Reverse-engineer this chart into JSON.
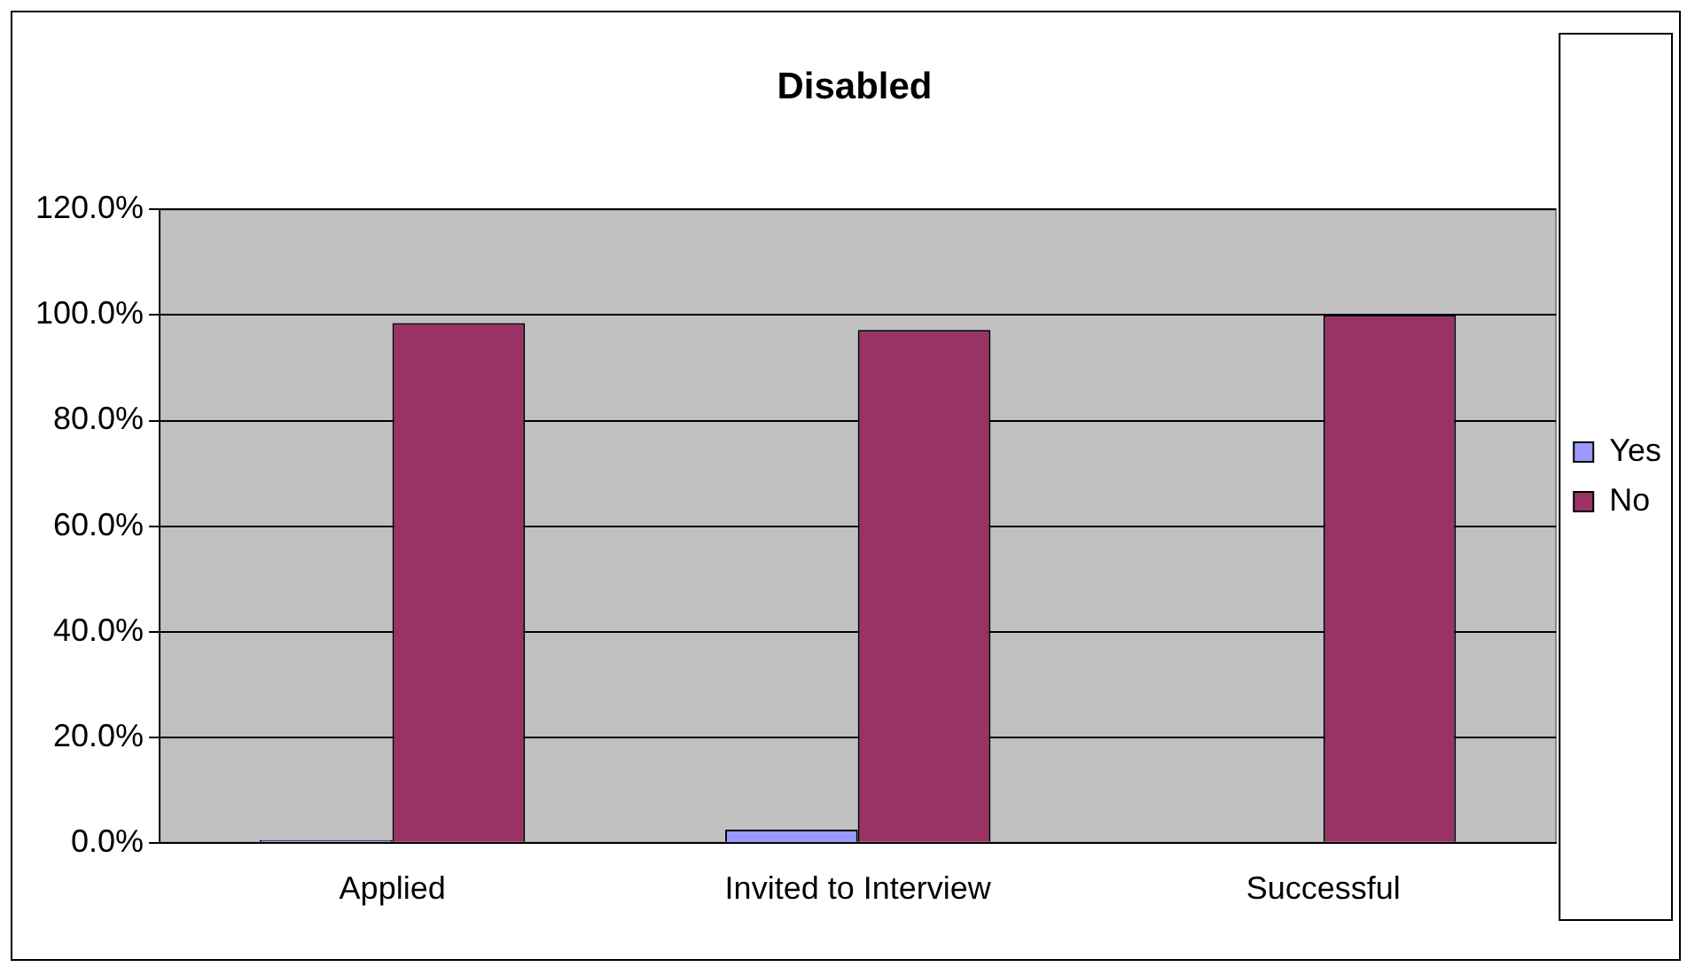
{
  "chart_data": {
    "type": "bar",
    "title": "Disabled",
    "categories": [
      "Applied",
      "Invited to Interview",
      "Successful"
    ],
    "series": [
      {
        "name": "Yes",
        "color": "#9999ff",
        "values": [
          0.5,
          2.5,
          0
        ]
      },
      {
        "name": "No",
        "color": "#993366",
        "values": [
          98.5,
          97.2,
          100
        ]
      }
    ],
    "ylim": [
      0,
      120
    ],
    "yticks": [
      {
        "value": 0,
        "label": "0.0%"
      },
      {
        "value": 20,
        "label": "20.0%"
      },
      {
        "value": 40,
        "label": "40.0%"
      },
      {
        "value": 60,
        "label": "60.0%"
      },
      {
        "value": 80,
        "label": "80.0%"
      },
      {
        "value": 100,
        "label": "100.0%"
      },
      {
        "value": 120,
        "label": "120.0%"
      }
    ],
    "grid": "y",
    "legend": "right"
  }
}
